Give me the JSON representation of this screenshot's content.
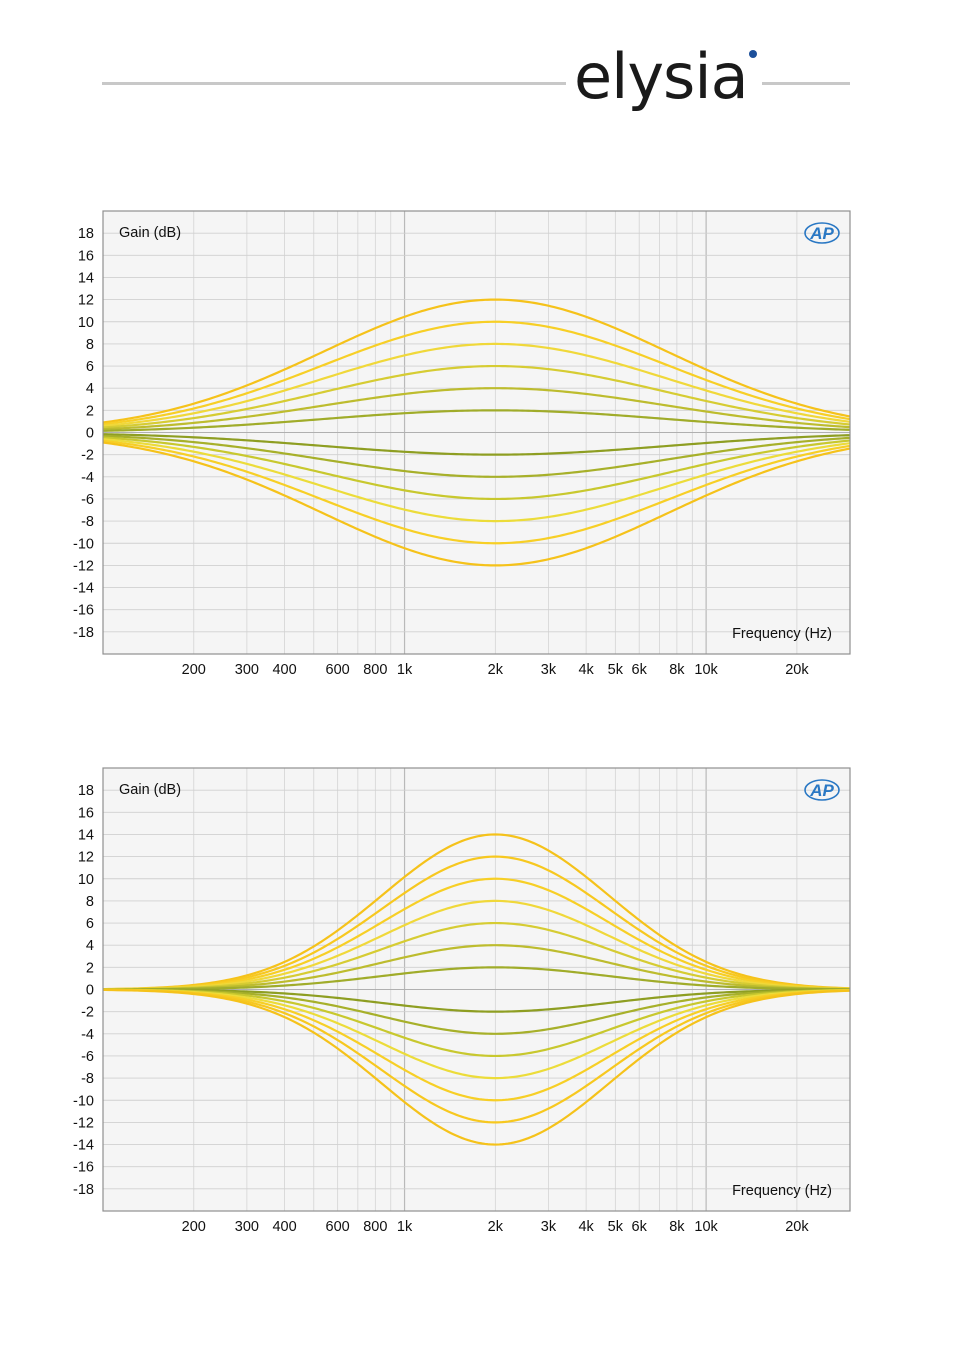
{
  "header": {
    "brand": "elysia",
    "brand_dot_color": "#1c4f9a"
  },
  "chart_data": [
    {
      "type": "line",
      "ylabel": "Gain (dB)",
      "xlabel": "Frequency (Hz)",
      "badge": "AP",
      "x_scale": "log",
      "xlim": [
        100,
        30000
      ],
      "ylim": [
        -20,
        20
      ],
      "yticks": [
        18,
        16,
        14,
        12,
        10,
        8,
        6,
        4,
        2,
        0,
        -2,
        -4,
        -6,
        -8,
        -10,
        -12,
        -14,
        -16,
        -18
      ],
      "xticks": [
        {
          "value": 200,
          "label": "200"
        },
        {
          "value": 300,
          "label": "300"
        },
        {
          "value": 400,
          "label": "400"
        },
        {
          "value": 600,
          "label": "600"
        },
        {
          "value": 800,
          "label": "800"
        },
        {
          "value": 1000,
          "label": "1k"
        },
        {
          "value": 2000,
          "label": "2k"
        },
        {
          "value": 3000,
          "label": "3k"
        },
        {
          "value": 4000,
          "label": "4k"
        },
        {
          "value": 5000,
          "label": "5k"
        },
        {
          "value": 6000,
          "label": "6k"
        },
        {
          "value": 8000,
          "label": "8k"
        },
        {
          "value": 10000,
          "label": "10k"
        },
        {
          "value": 20000,
          "label": "20k"
        }
      ],
      "grid": true,
      "center_frequency": 2000,
      "bandwidth_octaves": 1.9,
      "series": [
        {
          "peak_gain": 12,
          "color": "#f5c21a"
        },
        {
          "peak_gain": 10,
          "color": "#f7cf26"
        },
        {
          "peak_gain": 8,
          "color": "#f0d83a"
        },
        {
          "peak_gain": 6,
          "color": "#d6cc33"
        },
        {
          "peak_gain": 4,
          "color": "#bdbc2e"
        },
        {
          "peak_gain": 2,
          "color": "#a0ac2a"
        },
        {
          "peak_gain": -2,
          "color": "#8e9e22"
        },
        {
          "peak_gain": -4,
          "color": "#a7b02a"
        },
        {
          "peak_gain": -6,
          "color": "#c8c82e"
        },
        {
          "peak_gain": -8,
          "color": "#ecdc3a"
        },
        {
          "peak_gain": -10,
          "color": "#f7cf26"
        },
        {
          "peak_gain": -12,
          "color": "#f5c21a"
        }
      ]
    },
    {
      "type": "line",
      "ylabel": "Gain (dB)",
      "xlabel": "Frequency (Hz)",
      "badge": "AP",
      "x_scale": "log",
      "xlim": [
        100,
        30000
      ],
      "ylim": [
        -20,
        20
      ],
      "yticks": [
        18,
        16,
        14,
        12,
        10,
        8,
        6,
        4,
        2,
        0,
        -2,
        -4,
        -6,
        -8,
        -10,
        -12,
        -14,
        -16,
        -18
      ],
      "xticks": [
        {
          "value": 200,
          "label": "200"
        },
        {
          "value": 300,
          "label": "300"
        },
        {
          "value": 400,
          "label": "400"
        },
        {
          "value": 600,
          "label": "600"
        },
        {
          "value": 800,
          "label": "800"
        },
        {
          "value": 1000,
          "label": "1k"
        },
        {
          "value": 2000,
          "label": "2k"
        },
        {
          "value": 3000,
          "label": "3k"
        },
        {
          "value": 4000,
          "label": "4k"
        },
        {
          "value": 5000,
          "label": "5k"
        },
        {
          "value": 6000,
          "label": "6k"
        },
        {
          "value": 8000,
          "label": "8k"
        },
        {
          "value": 10000,
          "label": "10k"
        },
        {
          "value": 20000,
          "label": "20k"
        }
      ],
      "grid": true,
      "center_frequency": 2000,
      "bandwidth_octaves": 1.25,
      "series": [
        {
          "peak_gain": 14,
          "color": "#f5c21a"
        },
        {
          "peak_gain": 12,
          "color": "#f7c81f"
        },
        {
          "peak_gain": 10,
          "color": "#f7cf26"
        },
        {
          "peak_gain": 8,
          "color": "#f0d83a"
        },
        {
          "peak_gain": 6,
          "color": "#d6cc33"
        },
        {
          "peak_gain": 4,
          "color": "#bdbc2e"
        },
        {
          "peak_gain": 2,
          "color": "#a0ac2a"
        },
        {
          "peak_gain": -2,
          "color": "#8e9e22"
        },
        {
          "peak_gain": -4,
          "color": "#a7b02a"
        },
        {
          "peak_gain": -6,
          "color": "#c8c82e"
        },
        {
          "peak_gain": -8,
          "color": "#ecdc3a"
        },
        {
          "peak_gain": -10,
          "color": "#f7cf26"
        },
        {
          "peak_gain": -12,
          "color": "#f7c81f"
        },
        {
          "peak_gain": -14,
          "color": "#f5c21a"
        }
      ]
    }
  ]
}
